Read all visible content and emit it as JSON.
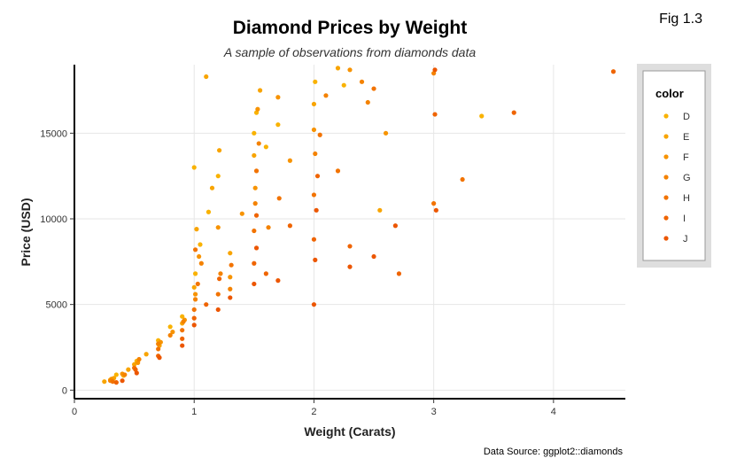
{
  "figure_label": "Fig 1.3",
  "caption": "Data Source: ggplot2::diamonds",
  "chart_data": {
    "type": "scatter",
    "title": "Diamond Prices by Weight",
    "subtitle": "A sample of observations from diamonds data",
    "xlabel": "Weight (Carats)",
    "ylabel": "Price (USD)",
    "xlim": [
      0,
      4.6
    ],
    "ylim": [
      -500,
      19000
    ],
    "x_ticks": [
      0,
      1,
      2,
      3,
      4
    ],
    "y_ticks": [
      0,
      5000,
      10000,
      15000
    ],
    "grid": true,
    "legend_position": "right",
    "legend": {
      "title": "color",
      "entries": [
        {
          "label": "D",
          "color": "#F9B200"
        },
        {
          "label": "E",
          "color": "#F8A400"
        },
        {
          "label": "F",
          "color": "#F79300"
        },
        {
          "label": "G",
          "color": "#F48200"
        },
        {
          "label": "H",
          "color": "#F27300"
        },
        {
          "label": "I",
          "color": "#EF6400"
        },
        {
          "label": "J",
          "color": "#EC5600"
        }
      ]
    },
    "series": [
      {
        "name": "D",
        "points": [
          [
            0.3,
            600
          ],
          [
            0.41,
            850
          ],
          [
            0.52,
            1700
          ],
          [
            0.7,
            2900
          ],
          [
            0.9,
            4300
          ],
          [
            1.01,
            6800
          ],
          [
            1.05,
            8500
          ],
          [
            1.12,
            10400
          ],
          [
            1.2,
            12500
          ],
          [
            1.5,
            15000
          ],
          [
            1.52,
            16200
          ],
          [
            1.6,
            14200
          ],
          [
            2.01,
            18000
          ],
          [
            3.4,
            16000
          ],
          [
            1.0,
            13000
          ],
          [
            0.8,
            3700
          ],
          [
            0.35,
            900
          ],
          [
            1.7,
            15500
          ],
          [
            2.25,
            17800
          ]
        ]
      },
      {
        "name": "E",
        "points": [
          [
            0.25,
            500
          ],
          [
            0.33,
            700
          ],
          [
            0.5,
            1500
          ],
          [
            0.71,
            2600
          ],
          [
            0.9,
            3900
          ],
          [
            1.0,
            6000
          ],
          [
            1.02,
            9400
          ],
          [
            1.15,
            11800
          ],
          [
            1.5,
            13700
          ],
          [
            1.55,
            17500
          ],
          [
            1.3,
            8000
          ],
          [
            2.0,
            16700
          ],
          [
            2.55,
            10500
          ],
          [
            0.6,
            2100
          ],
          [
            1.1,
            18300
          ],
          [
            2.2,
            18800
          ],
          [
            1.21,
            14000
          ],
          [
            0.45,
            1200
          ]
        ]
      },
      {
        "name": "F",
        "points": [
          [
            0.31,
            650
          ],
          [
            0.4,
            950
          ],
          [
            0.53,
            1600
          ],
          [
            0.72,
            2800
          ],
          [
            0.92,
            4100
          ],
          [
            1.01,
            5600
          ],
          [
            1.04,
            7800
          ],
          [
            1.2,
            9500
          ],
          [
            1.51,
            11800
          ],
          [
            1.53,
            16400
          ],
          [
            1.7,
            17100
          ],
          [
            2.0,
            15200
          ],
          [
            2.3,
            18700
          ],
          [
            0.82,
            3400
          ],
          [
            1.3,
            6600
          ],
          [
            1.4,
            10300
          ],
          [
            2.6,
            15000
          ],
          [
            1.8,
            13400
          ]
        ]
      },
      {
        "name": "G",
        "points": [
          [
            0.3,
            550
          ],
          [
            0.42,
            900
          ],
          [
            0.54,
            1800
          ],
          [
            0.7,
            2700
          ],
          [
            0.91,
            4000
          ],
          [
            1.01,
            5300
          ],
          [
            1.06,
            7400
          ],
          [
            1.22,
            6800
          ],
          [
            1.51,
            10900
          ],
          [
            1.54,
            14400
          ],
          [
            1.62,
            9500
          ],
          [
            2.01,
            13800
          ],
          [
            2.1,
            17200
          ],
          [
            2.4,
            18000
          ],
          [
            1.3,
            5900
          ],
          [
            0.8,
            3200
          ],
          [
            3.0,
            18500
          ],
          [
            2.45,
            16800
          ]
        ]
      },
      {
        "name": "H",
        "points": [
          [
            0.32,
            500
          ],
          [
            0.5,
            1300
          ],
          [
            0.7,
            2400
          ],
          [
            0.9,
            3500
          ],
          [
            1.0,
            4700
          ],
          [
            1.03,
            6200
          ],
          [
            1.2,
            5600
          ],
          [
            1.31,
            7300
          ],
          [
            1.5,
            9300
          ],
          [
            1.52,
            12800
          ],
          [
            1.71,
            11200
          ],
          [
            2.0,
            11400
          ],
          [
            2.05,
            14900
          ],
          [
            2.5,
            17600
          ],
          [
            3.0,
            10900
          ],
          [
            3.24,
            12300
          ],
          [
            2.2,
            12800
          ],
          [
            1.01,
            8200
          ]
        ]
      },
      {
        "name": "I",
        "points": [
          [
            0.35,
            450
          ],
          [
            0.51,
            1200
          ],
          [
            0.7,
            2000
          ],
          [
            0.9,
            3000
          ],
          [
            1.0,
            4200
          ],
          [
            1.1,
            5000
          ],
          [
            1.21,
            6500
          ],
          [
            1.5,
            7400
          ],
          [
            1.52,
            10200
          ],
          [
            1.6,
            6800
          ],
          [
            2.0,
            8800
          ],
          [
            2.03,
            12500
          ],
          [
            2.3,
            8400
          ],
          [
            3.01,
            16100
          ],
          [
            3.67,
            16200
          ],
          [
            4.5,
            18600
          ],
          [
            2.71,
            6800
          ],
          [
            1.8,
            9600
          ]
        ]
      },
      {
        "name": "J",
        "points": [
          [
            0.4,
            550
          ],
          [
            0.52,
            1000
          ],
          [
            0.71,
            1900
          ],
          [
            0.9,
            2600
          ],
          [
            1.0,
            3800
          ],
          [
            1.2,
            4700
          ],
          [
            1.5,
            6200
          ],
          [
            1.52,
            8300
          ],
          [
            2.0,
            5000
          ],
          [
            2.01,
            7600
          ],
          [
            2.02,
            10500
          ],
          [
            2.5,
            7800
          ],
          [
            2.68,
            9600
          ],
          [
            3.02,
            10500
          ],
          [
            3.01,
            18700
          ],
          [
            1.3,
            5400
          ],
          [
            2.3,
            7200
          ],
          [
            1.7,
            6400
          ]
        ]
      }
    ]
  }
}
